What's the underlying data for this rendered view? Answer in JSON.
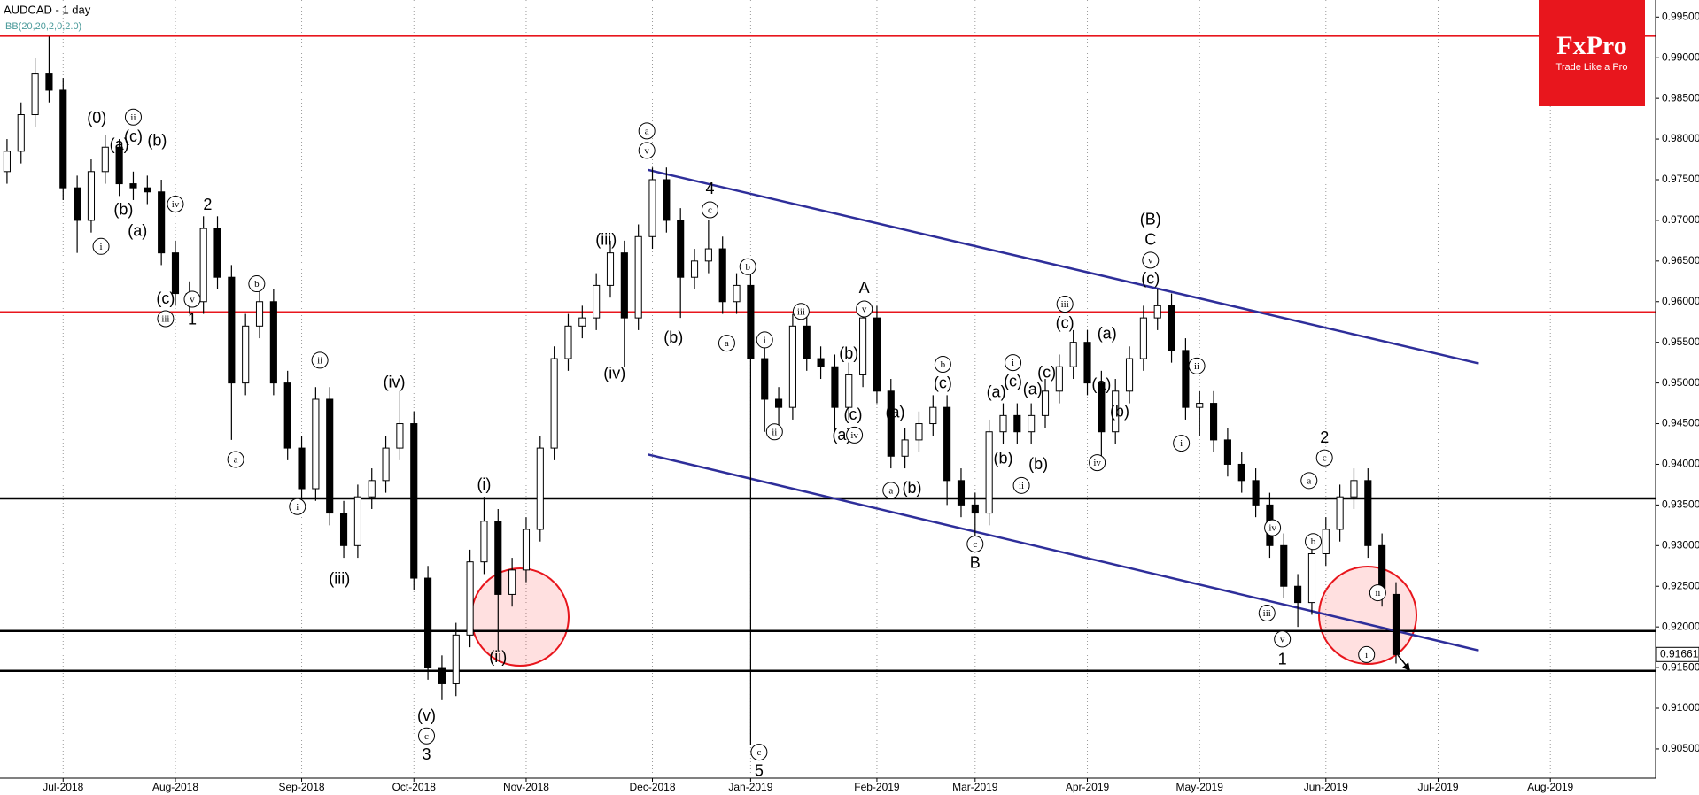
{
  "chart_data": {
    "type": "candlestick",
    "title": "AUDCAD - 1 day",
    "subtitle": "BB(20,20,2,0,2.0)",
    "logo": {
      "name": "FxPro",
      "tagline": "Trade Like a Pro"
    },
    "categories": [
      null,
      null,
      null,
      null,
      "Jul-2018",
      null,
      null,
      null,
      null,
      null,
      null,
      null,
      "Aug-2018",
      null,
      null,
      null,
      null,
      null,
      null,
      null,
      null,
      "Sep-2018",
      null,
      null,
      null,
      null,
      null,
      null,
      null,
      "Oct-2018",
      null,
      null,
      null,
      null,
      null,
      null,
      null,
      "Nov-2018",
      null,
      null,
      null,
      null,
      null,
      null,
      null,
      null,
      "Dec-2018",
      null,
      null,
      null,
      null,
      null,
      null,
      "Jan-2019",
      null,
      null,
      null,
      null,
      null,
      null,
      null,
      null,
      "Feb-2019",
      null,
      null,
      null,
      null,
      null,
      null,
      "Mar-2019",
      null,
      null,
      null,
      null,
      null,
      null,
      null,
      "Apr-2019",
      null,
      null,
      null,
      null,
      null,
      null,
      null,
      "May-2019",
      null,
      null,
      null,
      null,
      null,
      null,
      null,
      null,
      "Jun-2019",
      null,
      null,
      null,
      null,
      null,
      null,
      null,
      "Jul-2019",
      null,
      null,
      null,
      null,
      null,
      null,
      null,
      "Aug-2019",
      null,
      null,
      null,
      null,
      null,
      null,
      null
    ],
    "open": [
      0.976,
      0.9785,
      0.983,
      0.988,
      0.986,
      0.974,
      0.97,
      0.976,
      0.979,
      0.9745,
      0.974,
      0.9735,
      0.966,
      0.961,
      0.96,
      0.969,
      0.963,
      0.95,
      0.957,
      0.96,
      0.95,
      0.942,
      0.937,
      0.948,
      0.934,
      0.93,
      0.936,
      0.938,
      0.942,
      0.945,
      0.926,
      0.915,
      0.913,
      0.919,
      0.928,
      0.933,
      0.924,
      0.927,
      0.932,
      0.942,
      0.953,
      0.957,
      0.958,
      0.962,
      0.966,
      0.958,
      0.968,
      0.975,
      0.97,
      0.963,
      0.965,
      0.9665,
      0.96,
      0.962,
      0.953,
      0.948,
      0.947,
      0.957,
      0.953,
      0.952,
      0.947,
      0.951,
      0.958,
      0.949,
      0.941,
      0.943,
      0.945,
      0.947,
      0.938,
      0.935,
      0.934,
      0.944,
      0.946,
      0.944,
      0.946,
      0.949,
      0.952,
      0.955,
      0.95,
      0.944,
      0.949,
      0.953,
      0.958,
      0.9595,
      0.954,
      0.947,
      0.9475,
      0.943,
      0.94,
      0.938,
      0.935,
      0.93,
      0.925,
      0.923,
      0.929,
      0.932,
      0.936,
      0.938,
      0.93,
      0.924,
      null,
      null,
      null,
      null,
      null,
      null,
      null,
      null,
      null,
      null,
      null,
      null,
      null,
      null,
      null,
      null,
      null,
      null
    ],
    "high": [
      0.98,
      0.9845,
      0.99,
      0.9926,
      0.9875,
      0.9755,
      0.9775,
      0.9805,
      0.98,
      0.976,
      0.9755,
      0.975,
      0.9675,
      0.9625,
      0.9705,
      0.9705,
      0.9645,
      0.9585,
      0.9615,
      0.9615,
      0.9515,
      0.9435,
      0.9495,
      0.9495,
      0.9355,
      0.9375,
      0.9395,
      0.9435,
      0.949,
      0.9465,
      0.9275,
      0.9165,
      0.9205,
      0.9295,
      0.936,
      0.9345,
      0.9285,
      0.9335,
      0.9435,
      0.9545,
      0.9585,
      0.9595,
      0.9635,
      0.9675,
      0.9675,
      0.9695,
      0.9765,
      0.9765,
      0.9715,
      0.9665,
      0.97,
      0.968,
      0.9635,
      0.9635,
      0.9545,
      0.9495,
      0.9585,
      0.9585,
      0.9545,
      0.9535,
      0.9525,
      0.9595,
      0.9595,
      0.9505,
      0.9445,
      0.9465,
      0.9485,
      0.9485,
      0.9395,
      0.9365,
      0.9455,
      0.9475,
      0.9475,
      0.9475,
      0.9505,
      0.9535,
      0.9565,
      0.9565,
      0.9515,
      0.9505,
      0.9545,
      0.9595,
      0.9615,
      0.961,
      0.9555,
      0.949,
      0.949,
      0.9445,
      0.9415,
      0.9395,
      0.9365,
      0.9315,
      0.9265,
      0.9305,
      0.9335,
      0.9375,
      0.9395,
      0.9395,
      0.9315,
      0.9255,
      null,
      null,
      null,
      null,
      null,
      null,
      null,
      null,
      null,
      null,
      null,
      null,
      null,
      null,
      null,
      null,
      null,
      null
    ],
    "low": [
      0.9745,
      0.977,
      0.9815,
      0.9845,
      0.9725,
      0.966,
      0.9685,
      0.9745,
      0.973,
      0.9725,
      0.972,
      0.9645,
      0.9595,
      0.9585,
      0.9585,
      0.9615,
      0.943,
      0.9485,
      0.9555,
      0.9485,
      0.9405,
      0.9355,
      0.9355,
      0.9325,
      0.9285,
      0.9285,
      0.9345,
      0.9365,
      0.9405,
      0.9245,
      0.9135,
      0.911,
      0.9115,
      0.9175,
      0.9265,
      0.917,
      0.9225,
      0.9255,
      0.9305,
      0.9405,
      0.9515,
      0.9555,
      0.9565,
      0.9605,
      0.952,
      0.9565,
      0.9665,
      0.9685,
      0.958,
      0.9615,
      0.9635,
      0.9585,
      0.9585,
      0.9055,
      0.944,
      0.944,
      0.9455,
      0.9515,
      0.9505,
      0.944,
      0.9455,
      0.9495,
      0.9475,
      0.9395,
      0.9395,
      0.9415,
      0.9435,
      0.935,
      0.9335,
      0.931,
      0.9325,
      0.9425,
      0.9425,
      0.9425,
      0.9445,
      0.9475,
      0.9505,
      0.9485,
      0.941,
      0.9425,
      0.9475,
      0.9515,
      0.9565,
      0.9525,
      0.9455,
      0.9435,
      0.9415,
      0.9385,
      0.9365,
      0.9335,
      0.9285,
      0.9235,
      0.92,
      0.9215,
      0.9275,
      0.9305,
      0.9345,
      0.9285,
      0.9225,
      0.9155,
      null,
      null,
      null,
      null,
      null,
      null,
      null,
      null,
      null,
      null,
      null,
      null,
      null,
      null,
      null,
      null,
      null,
      null
    ],
    "close": [
      0.9785,
      0.983,
      0.988,
      0.986,
      0.974,
      0.97,
      0.976,
      0.979,
      0.9745,
      0.974,
      0.9735,
      0.966,
      0.961,
      0.96,
      0.969,
      0.963,
      0.95,
      0.957,
      0.96,
      0.95,
      0.942,
      0.937,
      0.948,
      0.934,
      0.93,
      0.936,
      0.938,
      0.942,
      0.945,
      0.926,
      0.915,
      0.913,
      0.919,
      0.928,
      0.933,
      0.924,
      0.927,
      0.932,
      0.942,
      0.953,
      0.957,
      0.958,
      0.962,
      0.966,
      0.958,
      0.968,
      0.975,
      0.97,
      0.963,
      0.965,
      0.9665,
      0.96,
      0.962,
      0.953,
      0.948,
      0.947,
      0.957,
      0.953,
      0.952,
      0.947,
      0.951,
      0.958,
      0.949,
      0.941,
      0.943,
      0.945,
      0.947,
      0.938,
      0.935,
      0.934,
      0.944,
      0.946,
      0.944,
      0.946,
      0.949,
      0.952,
      0.955,
      0.95,
      0.944,
      0.949,
      0.953,
      0.958,
      0.9595,
      0.954,
      0.947,
      0.9475,
      0.943,
      0.94,
      0.938,
      0.935,
      0.93,
      0.925,
      0.923,
      0.929,
      0.932,
      0.936,
      0.938,
      0.93,
      0.924,
      0.9166,
      null,
      null,
      null,
      null,
      null,
      null,
      null,
      null,
      null,
      null,
      null,
      null,
      null,
      null,
      null,
      null,
      null,
      null
    ],
    "ylim": [
      0.9014,
      0.9971
    ],
    "yticks": [
      {
        "value": 0.995,
        "label": "0.99500"
      },
      {
        "value": 0.99,
        "label": "0.99000"
      },
      {
        "value": 0.985,
        "label": "0.98500"
      },
      {
        "value": 0.98,
        "label": "0.98000"
      },
      {
        "value": 0.975,
        "label": "0.97500"
      },
      {
        "value": 0.97,
        "label": "0.97000"
      },
      {
        "value": 0.965,
        "label": "0.96500"
      },
      {
        "value": 0.96,
        "label": "0.96000"
      },
      {
        "value": 0.955,
        "label": "0.95500"
      },
      {
        "value": 0.95,
        "label": "0.95000"
      },
      {
        "value": 0.945,
        "label": "0.94500"
      },
      {
        "value": 0.94,
        "label": "0.94000"
      },
      {
        "value": 0.935,
        "label": "0.93500"
      },
      {
        "value": 0.93,
        "label": "0.93000"
      },
      {
        "value": 0.925,
        "label": "0.92500"
      },
      {
        "value": 0.92,
        "label": "0.92000"
      },
      {
        "value": 0.915,
        "label": "0.91500"
      },
      {
        "value": 0.91,
        "label": "0.91000"
      },
      {
        "value": 0.905,
        "label": "0.90500"
      }
    ],
    "last_price": 0.91661,
    "hlines": [
      {
        "value": 0.9927,
        "color": "#e8161d"
      },
      {
        "value": 0.9587,
        "color": "#e8161d"
      },
      {
        "value": 0.9358,
        "color": "#000000"
      },
      {
        "value": 0.9195,
        "color": "#000000"
      },
      {
        "value": 0.9146,
        "color": "#000000"
      }
    ],
    "trendlines": [
      {
        "x": [
          46.2,
          105.4
        ],
        "y": [
          0.9762,
          0.9524
        ],
        "color": "#2e2e9a"
      },
      {
        "x": [
          46.2,
          105.4
        ],
        "y": [
          0.9412,
          0.9171
        ],
        "color": "#2e2e9a"
      }
    ],
    "annotations": [
      {
        "text": "(0)",
        "x": 6.9,
        "y": 0.9825
      },
      {
        "text": "ii",
        "x": 9.5,
        "y": 0.9827,
        "circled": true
      },
      {
        "text": "(a)",
        "x": 8.5,
        "y": 0.9792
      },
      {
        "text": "(c)",
        "x": 9.5,
        "y": 0.9802
      },
      {
        "text": "(b)",
        "x": 11.2,
        "y": 0.9797
      },
      {
        "text": "(b)",
        "x": 8.8,
        "y": 0.9712
      },
      {
        "text": "i",
        "x": 7.2,
        "y": 0.9668,
        "circled": true
      },
      {
        "text": "(a)",
        "x": 9.8,
        "y": 0.9686
      },
      {
        "text": "iv",
        "x": 12.5,
        "y": 0.972,
        "circled": true
      },
      {
        "text": "2",
        "x": 14.8,
        "y": 0.9718
      },
      {
        "text": "(c)",
        "x": 11.8,
        "y": 0.9603
      },
      {
        "text": "iii",
        "x": 11.8,
        "y": 0.9579,
        "circled": true
      },
      {
        "text": "v",
        "x": 13.7,
        "y": 0.9603,
        "circled": true
      },
      {
        "text": "1",
        "x": 13.7,
        "y": 0.9577
      },
      {
        "text": "b",
        "x": 18.3,
        "y": 0.9622,
        "circled": true
      },
      {
        "text": "a",
        "x": 16.8,
        "y": 0.9406,
        "circled": true
      },
      {
        "text": "ii",
        "x": 22.8,
        "y": 0.9528,
        "circled": true
      },
      {
        "text": "(iv)",
        "x": 28.1,
        "y": 0.95
      },
      {
        "text": "i",
        "x": 21.2,
        "y": 0.9348,
        "circled": true
      },
      {
        "text": "(iii)",
        "x": 24.2,
        "y": 0.9258
      },
      {
        "text": "(i)",
        "x": 34.5,
        "y": 0.9374
      },
      {
        "text": "(ii)",
        "x": 35.5,
        "y": 0.9162
      },
      {
        "text": "(v)",
        "x": 30.4,
        "y": 0.909
      },
      {
        "text": "c",
        "x": 30.4,
        "y": 0.9066,
        "circled": true
      },
      {
        "text": "3",
        "x": 30.4,
        "y": 0.9042
      },
      {
        "text": "(iii)",
        "x": 43.2,
        "y": 0.9675
      },
      {
        "text": "(iv)",
        "x": 43.8,
        "y": 0.9511
      },
      {
        "text": "a",
        "x": 46.1,
        "y": 0.981,
        "circled": true
      },
      {
        "text": "v",
        "x": 46.1,
        "y": 0.9786,
        "circled": true
      },
      {
        "text": "4",
        "x": 50.6,
        "y": 0.9738
      },
      {
        "text": "c",
        "x": 50.6,
        "y": 0.9713,
        "circled": true
      },
      {
        "text": "b",
        "x": 53.3,
        "y": 0.9643,
        "circled": true
      },
      {
        "text": "(b)",
        "x": 48,
        "y": 0.9555
      },
      {
        "text": "a",
        "x": 51.8,
        "y": 0.9549,
        "circled": true
      },
      {
        "text": "i",
        "x": 54.5,
        "y": 0.9553,
        "circled": true
      },
      {
        "text": "ii",
        "x": 55.2,
        "y": 0.944,
        "circled": true
      },
      {
        "text": "c",
        "x": 54.1,
        "y": 0.9046,
        "circled": true
      },
      {
        "text": "5",
        "x": 54.1,
        "y": 0.9022
      },
      {
        "text": "iii",
        "x": 57.1,
        "y": 0.9588,
        "circled": true
      },
      {
        "text": "(b)",
        "x": 60.5,
        "y": 0.9535
      },
      {
        "text": "(c)",
        "x": 60.8,
        "y": 0.946
      },
      {
        "text": "(a)",
        "x": 60,
        "y": 0.9435
      },
      {
        "text": "iv",
        "x": 60.9,
        "y": 0.9436,
        "circled": true
      },
      {
        "text": "A",
        "x": 61.6,
        "y": 0.9616
      },
      {
        "text": "v",
        "x": 61.6,
        "y": 0.9591,
        "circled": true
      },
      {
        "text": "(a)",
        "x": 63.8,
        "y": 0.9463
      },
      {
        "text": "a",
        "x": 63.5,
        "y": 0.9368,
        "circled": true
      },
      {
        "text": "(b)",
        "x": 65,
        "y": 0.937
      },
      {
        "text": "b",
        "x": 67.2,
        "y": 0.9523,
        "circled": true
      },
      {
        "text": "(c)",
        "x": 67.2,
        "y": 0.9499
      },
      {
        "text": "c",
        "x": 69.5,
        "y": 0.9302,
        "circled": true
      },
      {
        "text": "B",
        "x": 69.5,
        "y": 0.9278
      },
      {
        "text": "(a)",
        "x": 71,
        "y": 0.9488
      },
      {
        "text": "(b)",
        "x": 71.5,
        "y": 0.9406
      },
      {
        "text": "ii",
        "x": 72.8,
        "y": 0.9374,
        "circled": true
      },
      {
        "text": "i",
        "x": 72.2,
        "y": 0.9525,
        "circled": true
      },
      {
        "text": "(c)",
        "x": 72.2,
        "y": 0.9501
      },
      {
        "text": "(a)",
        "x": 73.6,
        "y": 0.9491
      },
      {
        "text": "(b)",
        "x": 74,
        "y": 0.9399
      },
      {
        "text": "(c)",
        "x": 74.6,
        "y": 0.9512
      },
      {
        "text": "iii",
        "x": 75.9,
        "y": 0.9597,
        "circled": true
      },
      {
        "text": "(c)",
        "x": 75.9,
        "y": 0.9573
      },
      {
        "text": "iv",
        "x": 78.2,
        "y": 0.9402,
        "circled": true
      },
      {
        "text": "(a)",
        "x": 78.9,
        "y": 0.956
      },
      {
        "text": "(a)",
        "x": 78.5,
        "y": 0.9497
      },
      {
        "text": "(b)",
        "x": 79.8,
        "y": 0.9464
      },
      {
        "text": "(B)",
        "x": 82,
        "y": 0.97
      },
      {
        "text": "C",
        "x": 82,
        "y": 0.9675
      },
      {
        "text": "v",
        "x": 82,
        "y": 0.9651,
        "circled": true
      },
      {
        "text": "(c)",
        "x": 82,
        "y": 0.9627
      },
      {
        "text": "ii",
        "x": 85.3,
        "y": 0.9521,
        "circled": true
      },
      {
        "text": "i",
        "x": 84.2,
        "y": 0.9426,
        "circled": true
      },
      {
        "text": "iv",
        "x": 90.7,
        "y": 0.9322,
        "circled": true
      },
      {
        "text": "iii",
        "x": 90.3,
        "y": 0.9217,
        "circled": true
      },
      {
        "text": "v",
        "x": 91.4,
        "y": 0.9185,
        "circled": true
      },
      {
        "text": "1",
        "x": 91.4,
        "y": 0.9159
      },
      {
        "text": "b",
        "x": 93.6,
        "y": 0.9305,
        "circled": true
      },
      {
        "text": "a",
        "x": 93.3,
        "y": 0.938,
        "circled": true
      },
      {
        "text": "c",
        "x": 94.4,
        "y": 0.9408,
        "circled": true
      },
      {
        "text": "2",
        "x": 94.4,
        "y": 0.9432
      },
      {
        "text": "ii",
        "x": 98.2,
        "y": 0.9242,
        "circled": true
      },
      {
        "text": "i",
        "x": 97.4,
        "y": 0.9166,
        "circled": true
      }
    ]
  }
}
